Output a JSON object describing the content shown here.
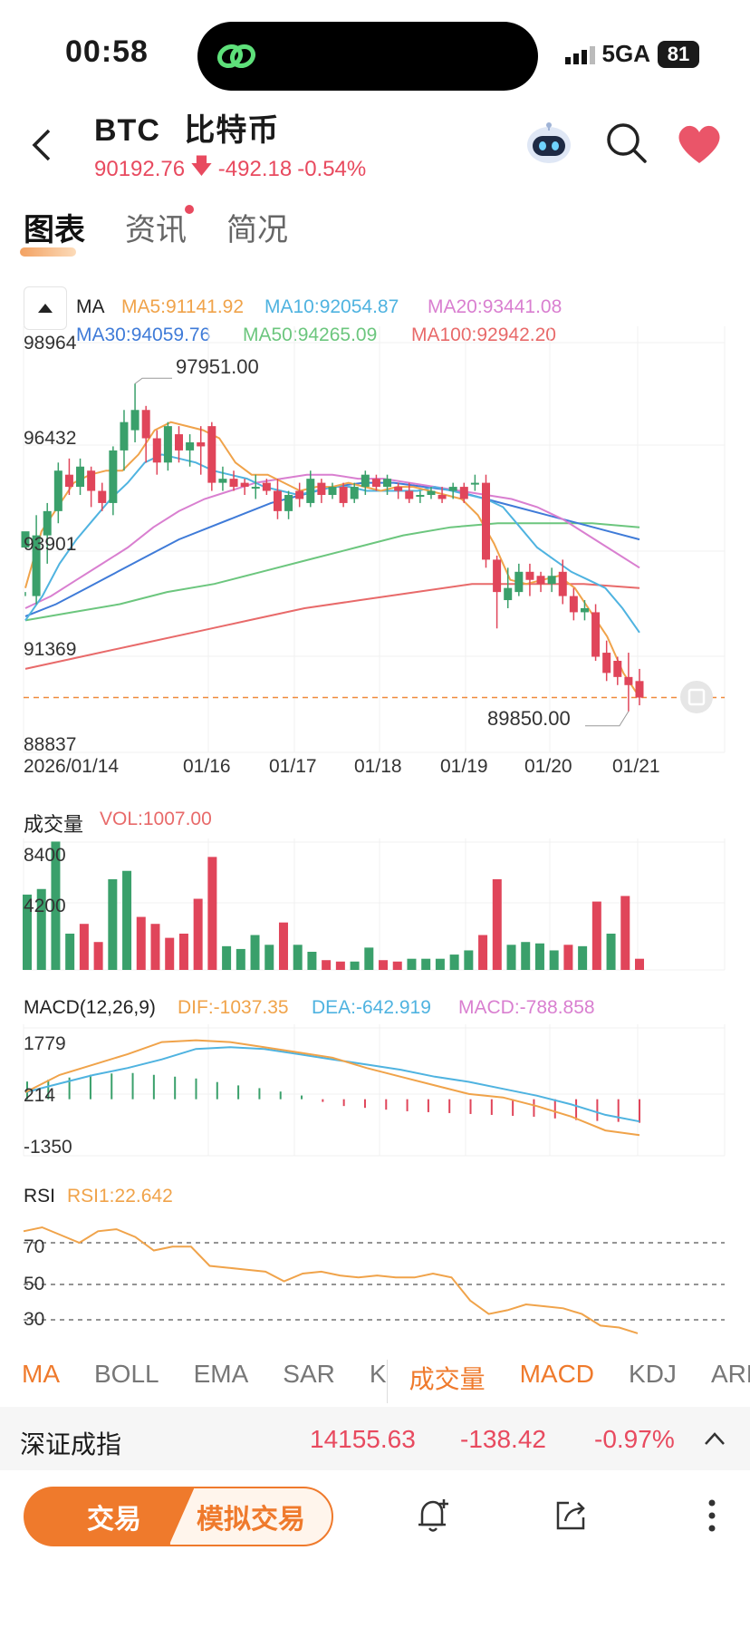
{
  "status": {
    "time": "00:58",
    "network": "5GA",
    "battery": "81"
  },
  "header": {
    "symbol": "BTC",
    "name": "比特币",
    "price": "90192.76",
    "change": "-492.18",
    "change_pct": "-0.54%"
  },
  "tabs": [
    {
      "label": "图表",
      "active": true
    },
    {
      "label": "资讯",
      "active": false,
      "dot": true
    },
    {
      "label": "简况",
      "active": false
    }
  ],
  "ma_legend": {
    "label": "MA",
    "ma5": "MA5:91141.92",
    "ma10": "MA10:92054.87",
    "ma20": "MA20:93441.08",
    "ma30": "MA30:94059.76",
    "ma50": "MA50:94265.09",
    "ma100": "MA100:92942.20"
  },
  "colors": {
    "up": "#3aa06b",
    "down": "#e0455a",
    "ma5": "#f0a34a",
    "ma10": "#4fb3e0",
    "ma20": "#d97fd0",
    "ma30": "#3f7bd8",
    "ma50": "#6cc67e",
    "ma100": "#e86a6a",
    "accent": "#ef7a2c"
  },
  "price_axis": [
    "98964",
    "96432",
    "93901",
    "91369",
    "88837"
  ],
  "date_axis": [
    "2026/01/14",
    "01/16",
    "01/17",
    "01/18",
    "01/19",
    "01/20",
    "01/21"
  ],
  "annotations": {
    "high": "97951.00",
    "low": "89850.00"
  },
  "volume": {
    "title": "成交量",
    "vol": "VOL:1007.00",
    "axis": [
      "8400",
      "4200"
    ]
  },
  "macd": {
    "title": "MACD(12,26,9)",
    "dif": "DIF:-1037.35",
    "dea": "DEA:-642.919",
    "macd": "MACD:-788.858",
    "axis": [
      "1779",
      "214",
      "-1350"
    ]
  },
  "rsi": {
    "title": "RSI",
    "rsi1": "RSI1:22.642",
    "axis": [
      "70",
      "50",
      "30"
    ]
  },
  "indicator_tabs": [
    {
      "label": "MA",
      "active": true
    },
    {
      "label": "BOLL",
      "active": false
    },
    {
      "label": "EMA",
      "active": false
    },
    {
      "label": "SAR",
      "active": false
    },
    {
      "label": "K",
      "active": false
    },
    {
      "label": "成交量",
      "active": true
    },
    {
      "label": "MACD",
      "active": true
    },
    {
      "label": "KDJ",
      "active": false
    },
    {
      "label": "ARBR",
      "active": false
    }
  ],
  "index_bar": {
    "name": "深证成指",
    "value": "14155.63",
    "change": "-138.42",
    "pct": "-0.97%"
  },
  "bottom": {
    "trade": "交易",
    "simulate": "模拟交易"
  },
  "chart_data": {
    "type": "candlestick",
    "candles": [
      [
        93900,
        94300,
        92800,
        92700
      ],
      [
        92700,
        94200,
        94700,
        92500
      ],
      [
        94200,
        94800,
        95000,
        93500
      ],
      [
        94800,
        95800,
        96000,
        94500
      ],
      [
        95700,
        95400,
        96100,
        95200
      ],
      [
        95400,
        95900,
        96100,
        95200
      ],
      [
        95800,
        95300,
        95900,
        94900
      ],
      [
        95300,
        95000,
        95500,
        94800
      ],
      [
        95000,
        96300,
        96400,
        94700
      ],
      [
        96300,
        97000,
        97300,
        95800
      ],
      [
        96800,
        97300,
        97951,
        96500
      ],
      [
        97300,
        96600,
        97400,
        96000
      ],
      [
        96600,
        96000,
        96800,
        95700
      ],
      [
        96000,
        96900,
        97000,
        95800
      ],
      [
        96700,
        96300,
        96900,
        96000
      ],
      [
        96300,
        96500,
        96700,
        95900
      ],
      [
        96500,
        96400,
        96900,
        95700
      ],
      [
        96900,
        95500,
        97000,
        95300
      ],
      [
        95500,
        95600,
        95900,
        95300
      ],
      [
        95600,
        95400,
        95800,
        95300
      ],
      [
        95500,
        95400,
        95600,
        95200
      ],
      [
        95400,
        95400,
        95700,
        95100
      ],
      [
        95500,
        95300,
        95600,
        95200
      ],
      [
        95300,
        94800,
        95600,
        94600
      ],
      [
        94800,
        95200,
        95300,
        94600
      ],
      [
        95300,
        95100,
        95500,
        94900
      ],
      [
        95000,
        95600,
        95800,
        94900
      ],
      [
        95500,
        95200,
        95600,
        95000
      ],
      [
        95200,
        95400,
        95500,
        95100
      ],
      [
        95400,
        95000,
        95500,
        94900
      ],
      [
        95100,
        95400,
        95500,
        95000
      ],
      [
        95400,
        95700,
        95800,
        95200
      ],
      [
        95600,
        95400,
        95700,
        95300
      ],
      [
        95400,
        95600,
        95700,
        95200
      ],
      [
        95400,
        95300,
        95500,
        95100
      ],
      [
        95300,
        95100,
        95500,
        95000
      ],
      [
        95200,
        95200,
        95300,
        95000
      ],
      [
        95200,
        95300,
        95400,
        95100
      ],
      [
        95200,
        95100,
        95400,
        95000
      ],
      [
        95300,
        95400,
        95500,
        95100
      ],
      [
        95400,
        95100,
        95500,
        95000
      ],
      [
        95500,
        95500,
        95700,
        95300
      ],
      [
        95500,
        93600,
        95700,
        93400
      ],
      [
        93600,
        92800,
        93700,
        91900
      ],
      [
        92600,
        92900,
        93400,
        92400
      ],
      [
        92800,
        93300,
        93500,
        92700
      ],
      [
        93300,
        93100,
        93500,
        92700
      ],
      [
        93200,
        93000,
        93300,
        92800
      ],
      [
        93000,
        93200,
        93400,
        92800
      ],
      [
        93300,
        92700,
        93600,
        92500
      ],
      [
        92700,
        92300,
        92900,
        92100
      ],
      [
        92300,
        92400,
        92600,
        92100
      ],
      [
        92300,
        91200,
        92500,
        91100
      ],
      [
        91300,
        90800,
        91600,
        90600
      ],
      [
        91100,
        90700,
        91200,
        90500
      ],
      [
        90700,
        90500,
        91300,
        89850
      ],
      [
        90600,
        90192,
        90900,
        90000
      ]
    ],
    "volume_bars": [
      [
        5400,
        "up"
      ],
      [
        5800,
        "up"
      ],
      [
        9200,
        "up"
      ],
      [
        2600,
        "up"
      ],
      [
        3300,
        "down"
      ],
      [
        2000,
        "down"
      ],
      [
        6500,
        "up"
      ],
      [
        7100,
        "up"
      ],
      [
        3800,
        "down"
      ],
      [
        3300,
        "down"
      ],
      [
        2300,
        "down"
      ],
      [
        2600,
        "down"
      ],
      [
        5100,
        "down"
      ],
      [
        8100,
        "down"
      ],
      [
        1700,
        "up"
      ],
      [
        1500,
        "up"
      ],
      [
        2500,
        "up"
      ],
      [
        1800,
        "up"
      ],
      [
        3400,
        "down"
      ],
      [
        1800,
        "up"
      ],
      [
        1300,
        "up"
      ],
      [
        700,
        "down"
      ],
      [
        600,
        "down"
      ],
      [
        600,
        "up"
      ],
      [
        1600,
        "up"
      ],
      [
        700,
        "down"
      ],
      [
        600,
        "down"
      ],
      [
        800,
        "up"
      ],
      [
        800,
        "up"
      ],
      [
        800,
        "up"
      ],
      [
        1100,
        "up"
      ],
      [
        1400,
        "up"
      ],
      [
        2500,
        "down"
      ],
      [
        6500,
        "down"
      ],
      [
        1800,
        "up"
      ],
      [
        2000,
        "up"
      ],
      [
        1900,
        "up"
      ],
      [
        1400,
        "up"
      ],
      [
        1800,
        "down"
      ],
      [
        1700,
        "up"
      ],
      [
        4900,
        "down"
      ],
      [
        2600,
        "up"
      ],
      [
        5300,
        "down"
      ],
      [
        800,
        "down"
      ]
    ],
    "ma_series": {
      "ma5": [
        92900,
        94300,
        94900,
        95500,
        95700,
        95800,
        95800,
        96200,
        96800,
        97000,
        96900,
        96800,
        96600,
        96000,
        95700,
        95700,
        95500,
        95300,
        95400,
        95400,
        95500,
        95400,
        95300,
        95400,
        95400,
        95300,
        95200,
        95100,
        94700,
        94000,
        93100,
        93000,
        93100,
        93200,
        92900,
        92300,
        91700,
        90800,
        90200
      ],
      "ma10": [
        92100,
        92700,
        93500,
        94100,
        94600,
        95100,
        95500,
        96000,
        96200,
        96100,
        96000,
        95800,
        95700,
        95600,
        95400,
        95300,
        95200,
        95300,
        95400,
        95400,
        95300,
        95300,
        95300,
        95300,
        95400,
        95300,
        95200,
        95100,
        94900,
        94400,
        93900,
        93600,
        93300,
        93100,
        92900,
        92400,
        91800
      ],
      "ma20": [
        92400,
        92700,
        93100,
        93500,
        93900,
        94400,
        94800,
        95100,
        95300,
        95500,
        95600,
        95700,
        95700,
        95600,
        95600,
        95500,
        95400,
        95300,
        95200,
        95100,
        94900,
        94600,
        94200,
        93800,
        93400
      ],
      "ma30": [
        92200,
        92500,
        92900,
        93300,
        93700,
        94100,
        94400,
        94700,
        95000,
        95200,
        95400,
        95500,
        95500,
        95400,
        95300,
        95100,
        94900,
        94700,
        94500,
        94300,
        94100
      ],
      "ma50": [
        92100,
        92300,
        92500,
        92800,
        93000,
        93300,
        93600,
        93900,
        94200,
        94400,
        94500,
        94500,
        94500,
        94400
      ],
      "ma100": [
        90900,
        91200,
        91500,
        91800,
        92100,
        92400,
        92600,
        92800,
        93000,
        93000,
        93000,
        92900
      ]
    },
    "macd": {
      "dif": [
        200,
        700,
        1000,
        1300,
        1650,
        1700,
        1650,
        1500,
        1350,
        1200,
        900,
        650,
        400,
        150,
        50,
        -200,
        -500,
        -900,
        -1037
      ],
      "dea": [
        200,
        450,
        700,
        900,
        1150,
        1450,
        1500,
        1450,
        1300,
        1150,
        1000,
        850,
        650,
        500,
        300,
        100,
        -150,
        -450,
        -643
      ],
      "histogram": [
        600,
        700,
        850,
        900,
        800,
        700,
        500,
        350,
        150,
        -200,
        -300,
        -400,
        -450,
        -500,
        -550,
        -600,
        -700,
        -750,
        -800
      ]
    },
    "rsi1": [
      76,
      78,
      74,
      70,
      76,
      77,
      73,
      66,
      68,
      68,
      58,
      57,
      56,
      55,
      50,
      54,
      55,
      53,
      52,
      53,
      52,
      52,
      54,
      52,
      40,
      33,
      35,
      38,
      37,
      36,
      33,
      27,
      26,
      23
    ],
    "rsi_guides": [
      70,
      50,
      30
    ],
    "ylim": [
      88837,
      98964
    ]
  }
}
